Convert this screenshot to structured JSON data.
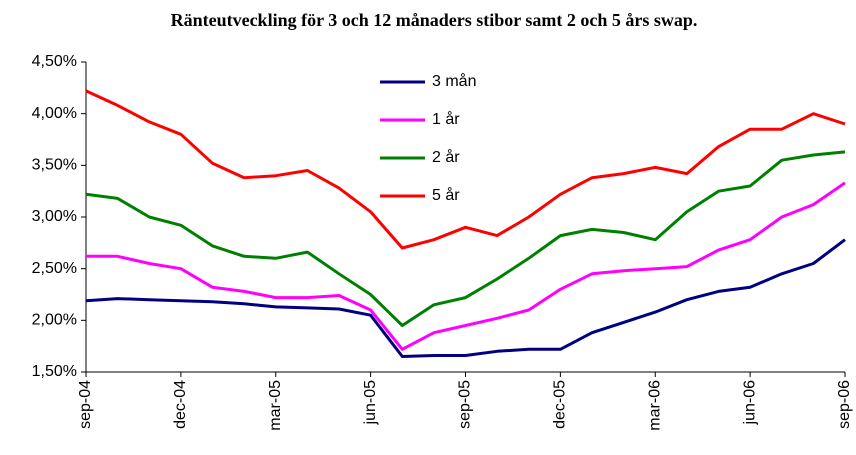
{
  "chart_data": {
    "type": "line",
    "title": "Ränteutveckling för 3 och 12 månaders stibor samt 2 och 5 års swap.",
    "categories": [
      "sep-04",
      null,
      null,
      "dec-04",
      null,
      null,
      "mar-05",
      null,
      null,
      "jun-05",
      null,
      null,
      "sep-05",
      null,
      null,
      "dec-05",
      null,
      null,
      "mar-06",
      null,
      null,
      "jun-06",
      null,
      null,
      "sep-06"
    ],
    "series": [
      {
        "name": "3 mån",
        "color": "#000080",
        "values": [
          2.19,
          2.21,
          2.2,
          2.19,
          2.18,
          2.16,
          2.13,
          2.12,
          2.11,
          2.05,
          1.65,
          1.66,
          1.66,
          1.7,
          1.72,
          1.72,
          1.88,
          1.98,
          2.08,
          2.2,
          2.28,
          2.32,
          2.45,
          2.55,
          2.78
        ]
      },
      {
        "name": "1 år",
        "color": "#ff00ff",
        "values": [
          2.62,
          2.62,
          2.55,
          2.5,
          2.32,
          2.28,
          2.22,
          2.22,
          2.24,
          2.1,
          1.72,
          1.88,
          1.95,
          2.02,
          2.1,
          2.3,
          2.45,
          2.48,
          2.5,
          2.52,
          2.68,
          2.78,
          3.0,
          3.12,
          3.33
        ]
      },
      {
        "name": "2 år",
        "color": "#008000",
        "values": [
          3.22,
          3.18,
          3.0,
          2.92,
          2.72,
          2.62,
          2.6,
          2.66,
          2.45,
          2.25,
          1.95,
          2.15,
          2.22,
          2.4,
          2.6,
          2.82,
          2.88,
          2.85,
          2.78,
          3.05,
          3.25,
          3.3,
          3.55,
          3.6,
          3.63
        ]
      },
      {
        "name": "5 år",
        "color": "#ff0000",
        "values": [
          4.22,
          4.08,
          3.92,
          3.8,
          3.52,
          3.38,
          3.4,
          3.45,
          3.28,
          3.05,
          2.7,
          2.78,
          2.9,
          2.82,
          3.0,
          3.22,
          3.38,
          3.42,
          3.48,
          3.42,
          3.68,
          3.85,
          3.85,
          4.0,
          3.9
        ]
      }
    ],
    "ylim": [
      1.5,
      4.5
    ],
    "yticks": [
      {
        "value": 1.5,
        "label": "1,50%"
      },
      {
        "value": 2.0,
        "label": "2,00%"
      },
      {
        "value": 2.5,
        "label": "2,50%"
      },
      {
        "value": 3.0,
        "label": "3,00%"
      },
      {
        "value": 3.5,
        "label": "3,50%"
      },
      {
        "value": 4.0,
        "label": "4,00%"
      },
      {
        "value": 4.5,
        "label": "4,50%"
      }
    ],
    "grid": false
  }
}
